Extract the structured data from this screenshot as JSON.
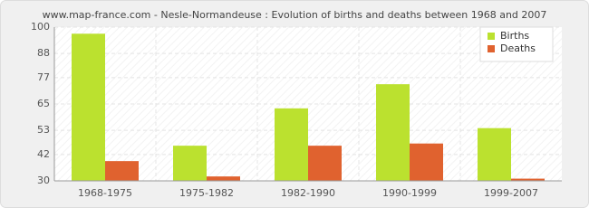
{
  "chart_data": {
    "type": "bar",
    "title": "www.map-france.com - Nesle-Normandeuse : Evolution of births and deaths between 1968 and 2007",
    "categories": [
      "1968-1975",
      "1975-1982",
      "1982-1990",
      "1990-1999",
      "1999-2007"
    ],
    "series": [
      {
        "name": "Births",
        "color": "#bbe12f",
        "values": [
          97,
          46,
          63,
          74,
          54
        ]
      },
      {
        "name": "Deaths",
        "color": "#e0622f",
        "values": [
          39,
          32,
          46,
          47,
          31
        ]
      }
    ],
    "ylim": [
      30,
      100
    ],
    "yticks": [
      30,
      42,
      53,
      65,
      77,
      88,
      100
    ],
    "grid": true,
    "legend": "upper right"
  }
}
